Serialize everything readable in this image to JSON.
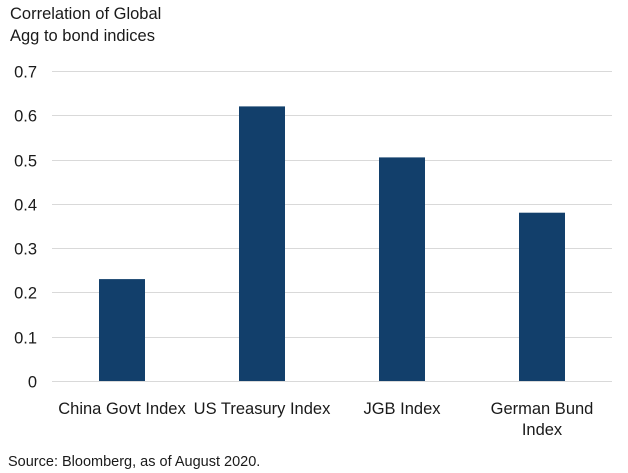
{
  "chart_data": {
    "type": "bar",
    "ylabel_lines": [
      "Correlation of Global",
      "Agg to bond indices"
    ],
    "xlabel": "",
    "categories": [
      [
        "China Govt Index"
      ],
      [
        "US Treasury Index"
      ],
      [
        "JGB Index"
      ],
      [
        "German Bund",
        "Index"
      ]
    ],
    "series": [
      {
        "values": [
          0.23,
          0.62,
          0.505,
          0.38
        ]
      }
    ],
    "ylim": [
      0,
      0.7
    ],
    "yticks": [
      0,
      0.1,
      0.2,
      0.3,
      0.4,
      0.5,
      0.6,
      0.7
    ],
    "ytick_labels": [
      "0",
      "0.1",
      "0.2",
      "0.3",
      "0.4",
      "0.5",
      "0.6",
      "0.7"
    ],
    "grid": true,
    "bar_color": "#123f6b",
    "grid_color": "#d9d9d9"
  },
  "source_note": "Source: Bloomberg, as of August 2020."
}
